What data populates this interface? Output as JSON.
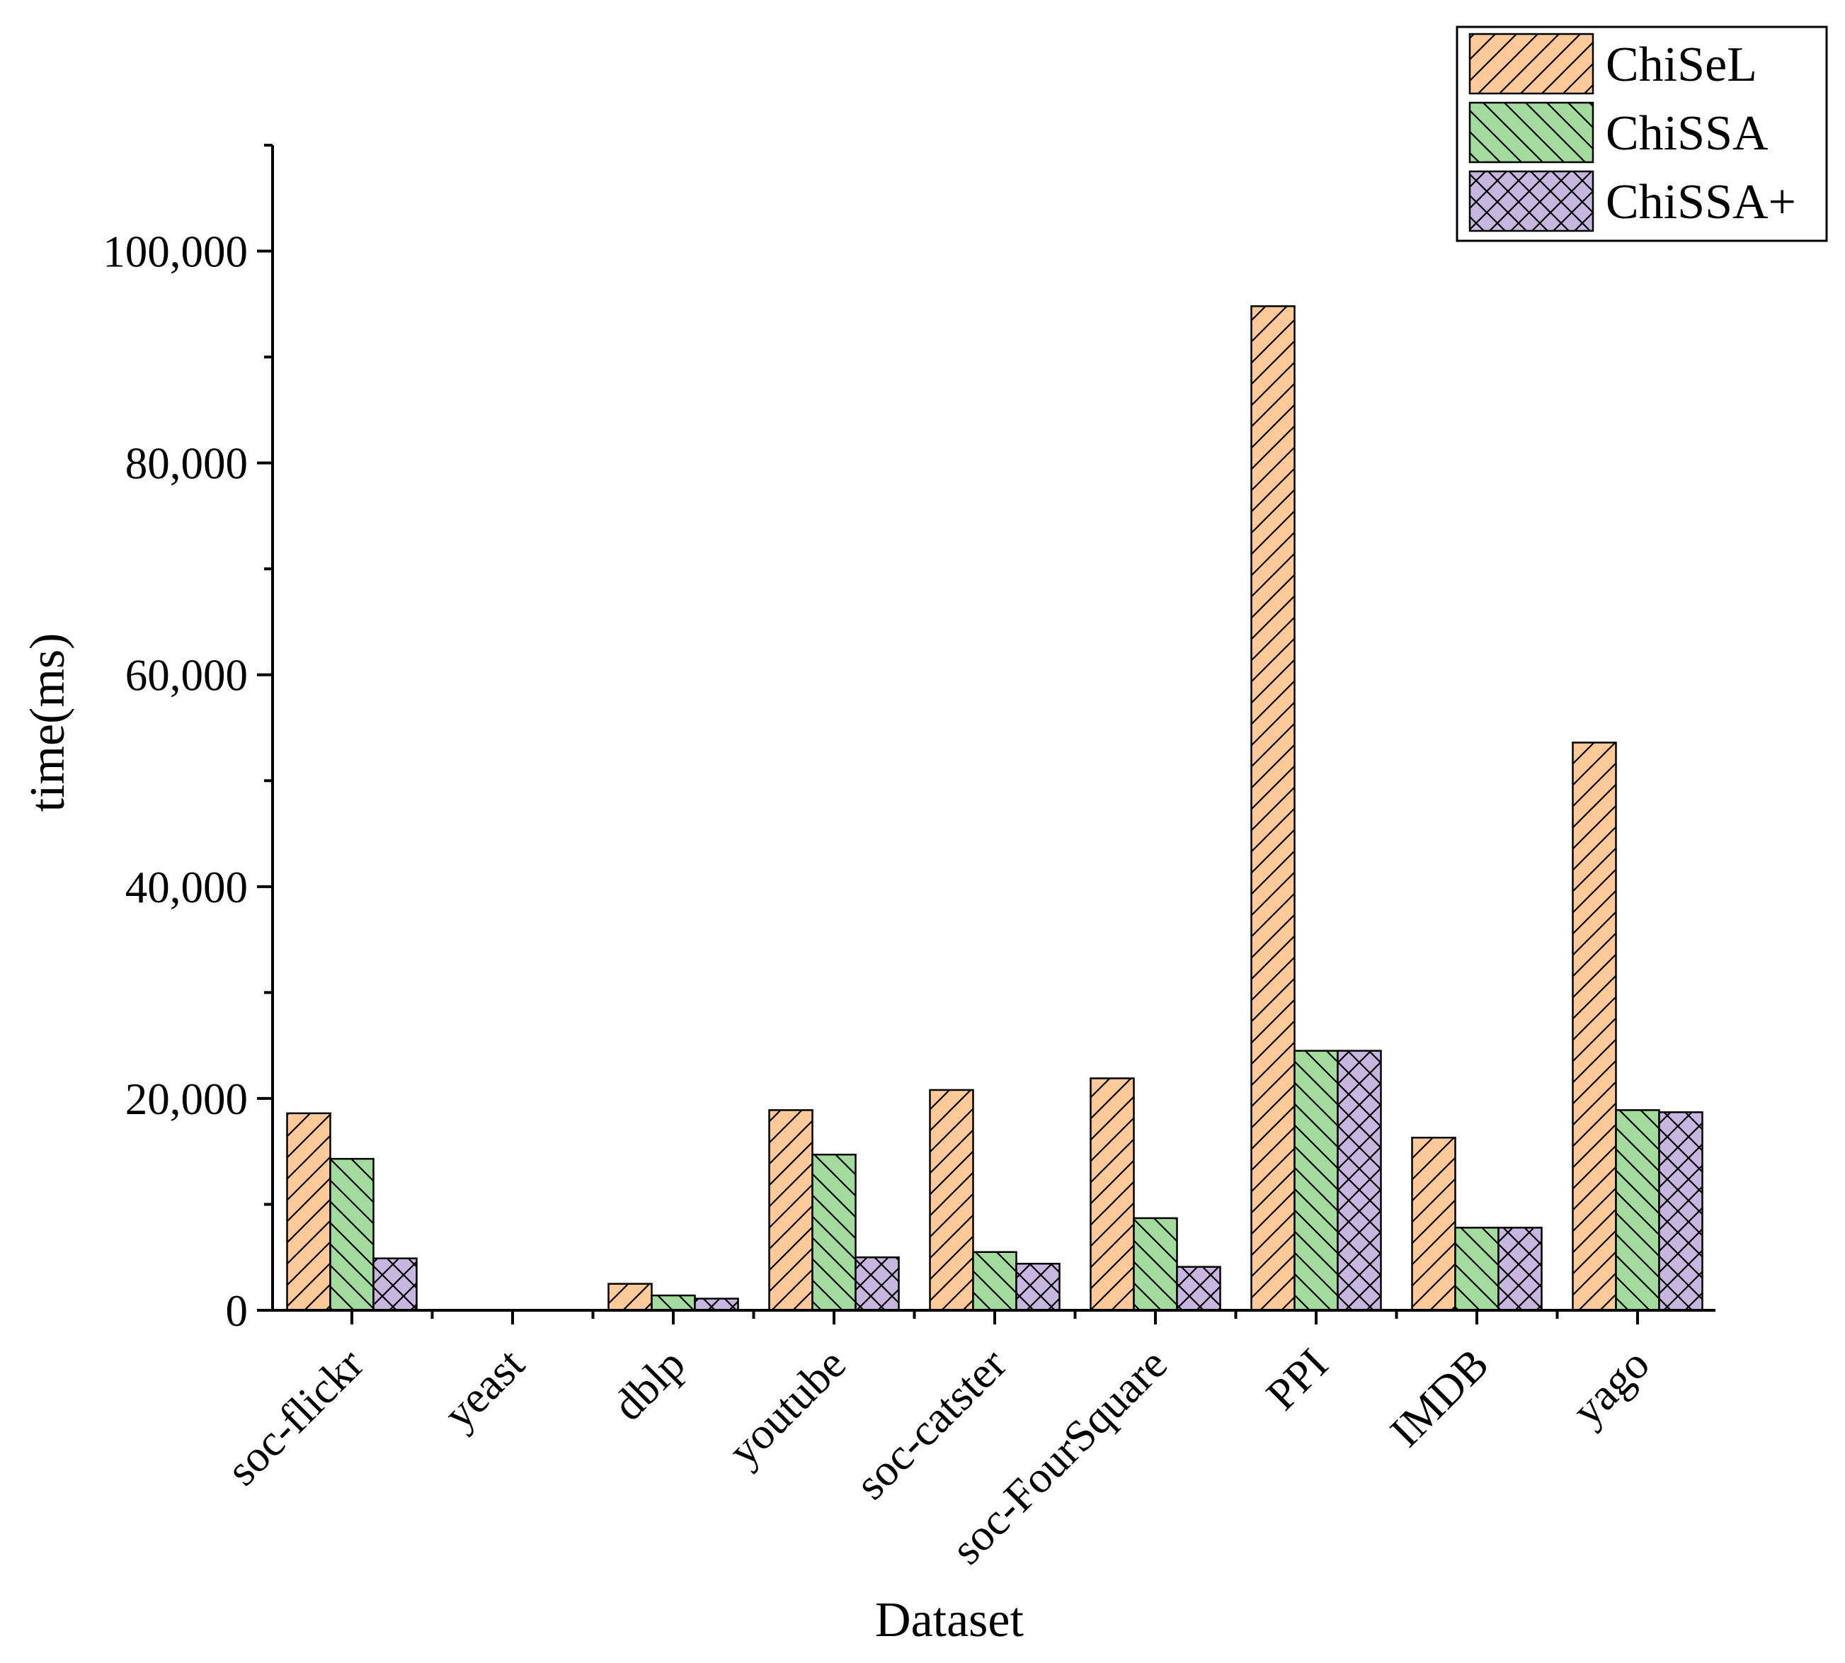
{
  "chart_data": {
    "type": "bar",
    "title": "",
    "xlabel": "Dataset",
    "ylabel": "time(ms)",
    "ylim": [
      0,
      110000
    ],
    "yticks": [
      0,
      20000,
      40000,
      60000,
      80000,
      100000
    ],
    "ytick_labels": [
      "0",
      "20,000",
      "40,000",
      "60,000",
      "80,000",
      "100,000"
    ],
    "grid": false,
    "legend_position": "top-right",
    "categories": [
      "soc-flickr",
      "yeast",
      "dblp",
      "youtube",
      "soc-catster",
      "soc-FourSquare",
      "PPI",
      "IMDB",
      "yago"
    ],
    "series": [
      {
        "name": "ChiSeL",
        "color": "#FFC999",
        "pattern": "diagonal-forward",
        "values": [
          18600,
          0,
          2500,
          18900,
          20800,
          21900,
          94800,
          16300,
          53600
        ]
      },
      {
        "name": "ChiSSA",
        "color": "#A3DB9E",
        "pattern": "diagonal-back",
        "values": [
          14300,
          0,
          1400,
          14700,
          5500,
          8700,
          24500,
          7800,
          18900
        ]
      },
      {
        "name": "ChiSSA+",
        "color": "#C7B6E0",
        "pattern": "crosshatch",
        "values": [
          4900,
          0,
          1100,
          5000,
          4400,
          4100,
          24500,
          7800,
          18700
        ]
      }
    ]
  }
}
